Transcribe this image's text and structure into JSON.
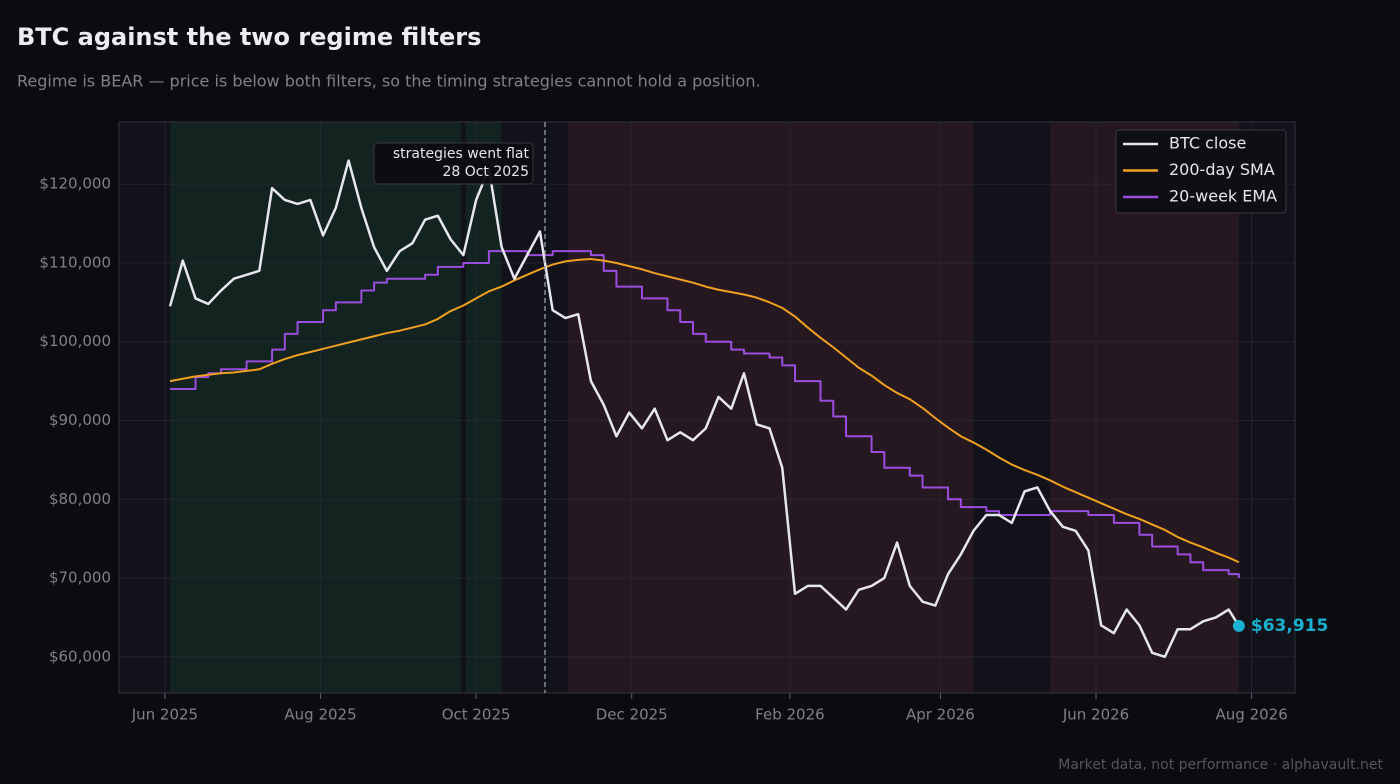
{
  "chart_data": {
    "type": "line",
    "title": "BTC against the two regime filters",
    "subtitle": "Regime is BEAR — price is below both filters, so the timing strategies cannot hold a position.",
    "footer": "Market data, not performance · alphavault.net",
    "x": [
      "2025-06-03",
      "2025-06-08",
      "2025-06-13",
      "2025-06-18",
      "2025-06-23",
      "2025-06-28",
      "2025-07-03",
      "2025-07-08",
      "2025-07-13",
      "2025-07-18",
      "2025-07-23",
      "2025-07-28",
      "2025-08-02",
      "2025-08-07",
      "2025-08-12",
      "2025-08-17",
      "2025-08-22",
      "2025-08-27",
      "2025-09-01",
      "2025-09-06",
      "2025-09-11",
      "2025-09-16",
      "2025-09-21",
      "2025-09-26",
      "2025-10-01",
      "2025-10-06",
      "2025-10-11",
      "2025-10-16",
      "2025-10-21",
      "2025-10-26",
      "2025-10-31",
      "2025-11-05",
      "2025-11-10",
      "2025-11-15",
      "2025-11-20",
      "2025-11-25",
      "2025-11-30",
      "2025-12-05",
      "2025-12-10",
      "2025-12-15",
      "2025-12-20",
      "2025-12-25",
      "2025-12-30",
      "2026-01-04",
      "2026-01-09",
      "2026-01-14",
      "2026-01-19",
      "2026-01-24",
      "2026-01-29",
      "2026-02-03",
      "2026-02-08",
      "2026-02-13",
      "2026-02-18",
      "2026-02-23",
      "2026-02-28",
      "2026-03-05",
      "2026-03-10",
      "2026-03-15",
      "2026-03-20",
      "2026-03-25",
      "2026-03-30",
      "2026-04-04",
      "2026-04-09",
      "2026-04-14",
      "2026-04-19",
      "2026-04-24",
      "2026-04-29",
      "2026-05-04",
      "2026-05-09",
      "2026-05-14",
      "2026-05-19",
      "2026-05-24",
      "2026-05-29",
      "2026-06-03",
      "2026-06-08",
      "2026-06-13",
      "2026-06-18",
      "2026-06-23",
      "2026-06-28",
      "2026-07-03",
      "2026-07-08",
      "2026-07-13",
      "2026-07-18",
      "2026-07-23",
      "2026-07-27"
    ],
    "series": [
      {
        "name": "BTC close",
        "color": "#e6e6ee",
        "last_label": "$63,915",
        "last_color": "#1ab0d0",
        "values": [
          104500,
          110300,
          105500,
          104800,
          106500,
          108000,
          108500,
          109000,
          119500,
          118000,
          117500,
          118000,
          113500,
          117000,
          123000,
          117000,
          112000,
          109000,
          111500,
          112500,
          115500,
          116000,
          113000,
          111000,
          118000,
          122000,
          112000,
          108000,
          111000,
          114000,
          104000,
          103000,
          103500,
          95000,
          92000,
          88000,
          91000,
          89000,
          91500,
          87500,
          88500,
          87500,
          89000,
          93000,
          91500,
          96000,
          89500,
          89000,
          84000,
          68000,
          69000,
          69000,
          67500,
          66000,
          68500,
          69000,
          70000,
          74500,
          69000,
          67000,
          66500,
          70500,
          73000,
          76000,
          78000,
          78000,
          77000,
          81000,
          81500,
          78500,
          76500,
          76000,
          73500,
          64000,
          63000,
          66000,
          64000,
          60500,
          60000,
          63500,
          63500,
          64500,
          65000,
          66000,
          63915
        ]
      },
      {
        "name": "200-day SMA",
        "color": "#f0a020",
        "values": [
          95000,
          95300,
          95600,
          95800,
          96000,
          96100,
          96300,
          96500,
          97200,
          97800,
          98300,
          98700,
          99100,
          99500,
          99900,
          100300,
          100700,
          101100,
          101400,
          101800,
          102200,
          102900,
          103900,
          104600,
          105500,
          106400,
          107000,
          107800,
          108500,
          109200,
          109800,
          110200,
          110400,
          110500,
          110300,
          110000,
          109600,
          109200,
          108700,
          108300,
          107900,
          107500,
          107000,
          106600,
          106300,
          106000,
          105600,
          105000,
          104300,
          103200,
          101800,
          100500,
          99300,
          98000,
          96700,
          95700,
          94500,
          93500,
          92700,
          91600,
          90300,
          89100,
          88000,
          87200,
          86300,
          85300,
          84400,
          83700,
          83100,
          82400,
          81600,
          80900,
          80200,
          79500,
          78800,
          78100,
          77500,
          76800,
          76100,
          75200,
          74500,
          73900,
          73200,
          72600,
          72000
        ]
      },
      {
        "name": "20-week EMA",
        "color": "#9b4de0",
        "step": true,
        "values": [
          94000,
          94000,
          95500,
          96000,
          96500,
          96500,
          97500,
          97500,
          99000,
          101000,
          102500,
          102500,
          104000,
          105000,
          105000,
          106500,
          107500,
          108000,
          108000,
          108000,
          108500,
          109500,
          109500,
          110000,
          110000,
          111500,
          111500,
          111500,
          111000,
          111000,
          111500,
          111500,
          111500,
          111000,
          109000,
          107000,
          107000,
          105500,
          105500,
          104000,
          102500,
          101000,
          100000,
          100000,
          99000,
          98500,
          98500,
          98000,
          97000,
          95000,
          95000,
          92500,
          90500,
          88000,
          88000,
          86000,
          84000,
          84000,
          83000,
          81500,
          81500,
          80000,
          79000,
          79000,
          78500,
          78000,
          78000,
          78000,
          78000,
          78500,
          78500,
          78500,
          78000,
          78000,
          77000,
          77000,
          75500,
          74000,
          74000,
          73000,
          72000,
          71000,
          71000,
          70500,
          70000
        ]
      }
    ],
    "regimes": [
      {
        "start": "2025-06-03",
        "end": "2025-09-25",
        "color": "#13231f"
      },
      {
        "start": "2025-09-27",
        "end": "2025-10-11",
        "color": "#13231f"
      },
      {
        "start": "2025-11-06",
        "end": "2026-04-14",
        "color": "#261820"
      },
      {
        "start": "2026-05-14",
        "end": "2026-07-27",
        "color": "#261820"
      }
    ],
    "event": {
      "x": "2025-10-28",
      "label": "strategies went flat",
      "date_label": "28 Oct 2025"
    },
    "xlim": [
      "2025-05-14",
      "2026-08-18"
    ],
    "xticks": [
      {
        "value": "2025-06-01",
        "label": "Jun 2025"
      },
      {
        "value": "2025-08-01",
        "label": "Aug 2025"
      },
      {
        "value": "2025-10-01",
        "label": "Oct 2025"
      },
      {
        "value": "2025-12-01",
        "label": "Dec 2025"
      },
      {
        "value": "2026-02-01",
        "label": "Feb 2026"
      },
      {
        "value": "2026-04-01",
        "label": "Apr 2026"
      },
      {
        "value": "2026-06-01",
        "label": "Jun 2026"
      },
      {
        "value": "2026-08-01",
        "label": "Aug 2026"
      }
    ],
    "ylim": [
      55400,
      127900
    ],
    "yticks": [
      {
        "value": 60000,
        "label": "$60,000"
      },
      {
        "value": 70000,
        "label": "$70,000"
      },
      {
        "value": 80000,
        "label": "$80,000"
      },
      {
        "value": 90000,
        "label": "$90,000"
      },
      {
        "value": 100000,
        "label": "$100,000"
      },
      {
        "value": 110000,
        "label": "$110,000"
      },
      {
        "value": 120000,
        "label": "$120,000"
      }
    ],
    "grid": true,
    "legend": "upper right"
  }
}
